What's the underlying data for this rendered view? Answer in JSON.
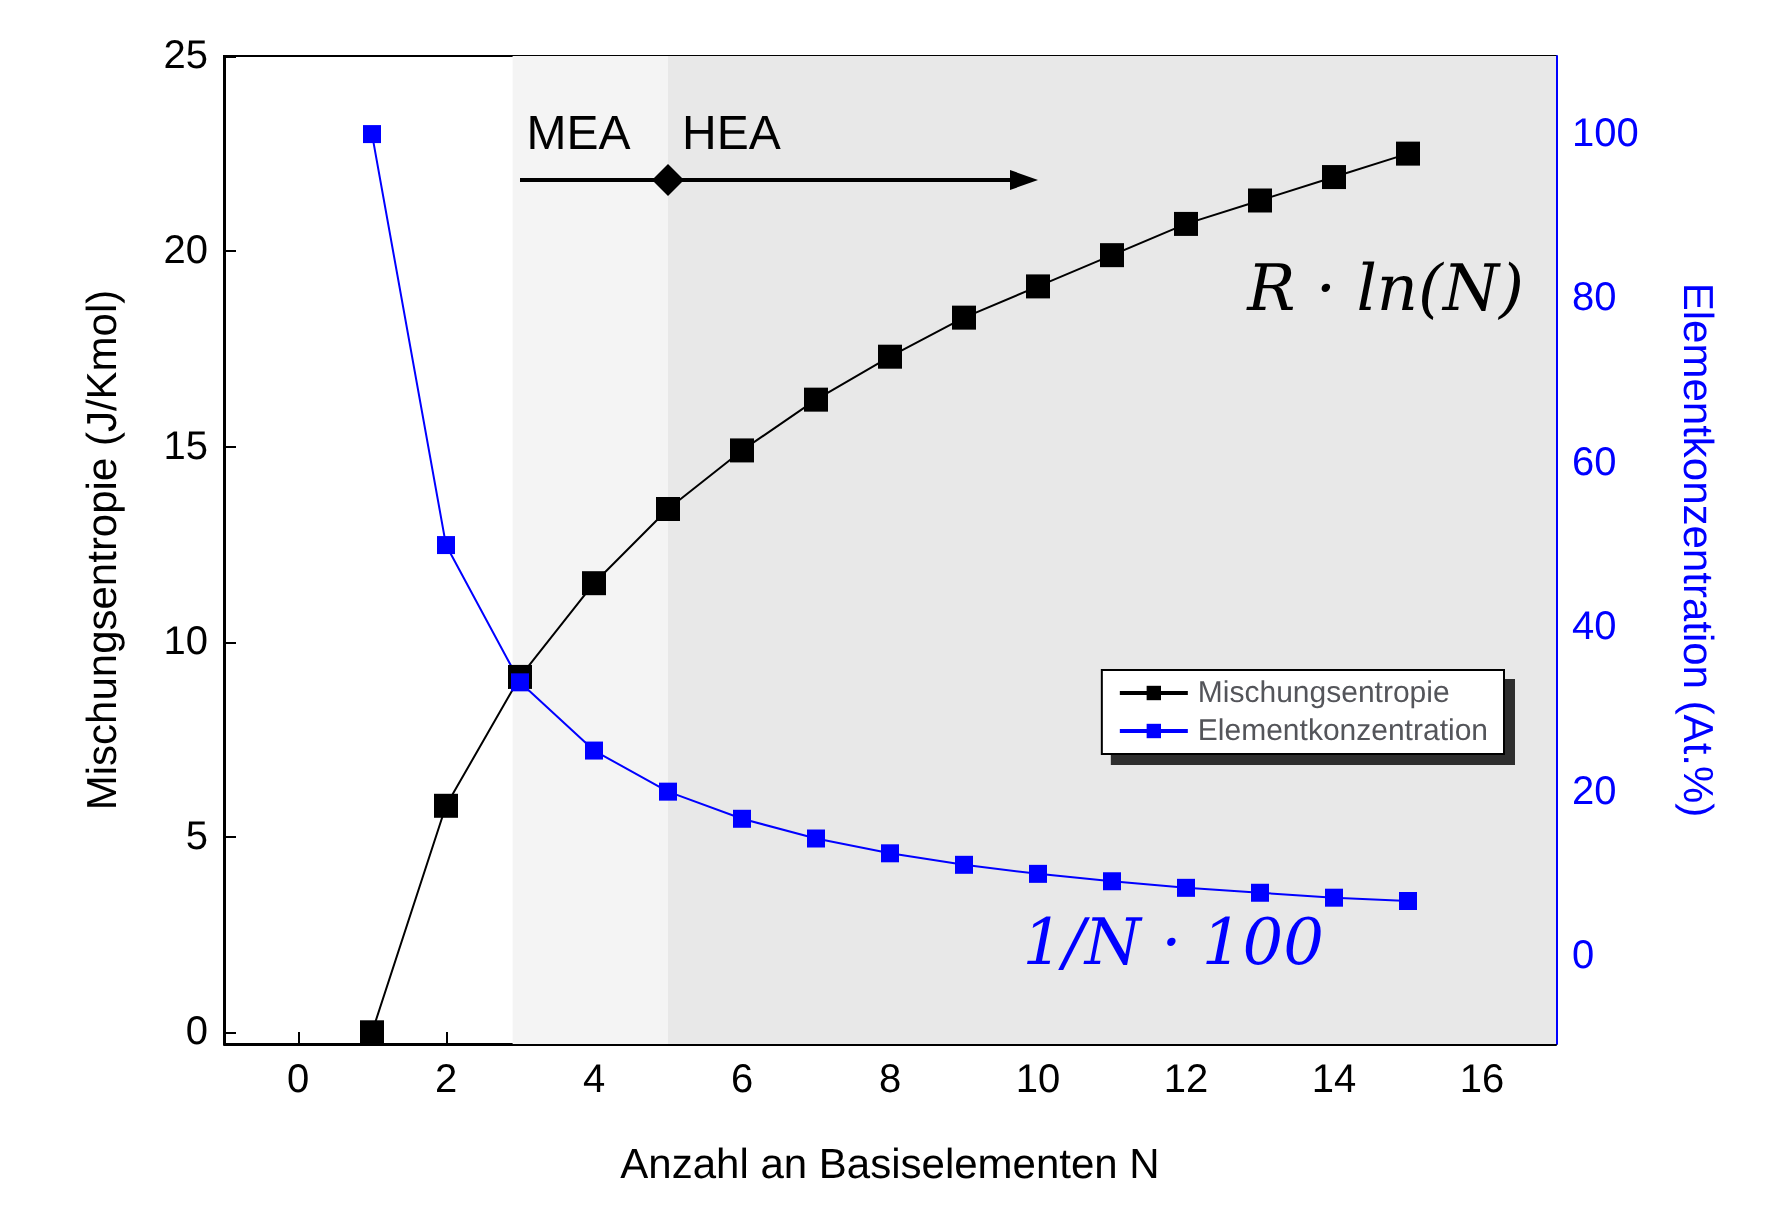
{
  "chart_data": {
    "type": "line",
    "xlabel": "Anzahl an Basiselementen N",
    "ylabel": "Mischungsentropie (J/Kmol)",
    "y2label": "Elementkonzentration (At.%)",
    "x": [
      1,
      2,
      3,
      4,
      5,
      6,
      7,
      8,
      9,
      10,
      11,
      12,
      13,
      14,
      15
    ],
    "series": [
      {
        "name": "Mischungsentropie",
        "color": "#000000",
        "values": [
          0,
          5.8,
          9.1,
          11.5,
          13.4,
          14.9,
          16.2,
          17.3,
          18.3,
          19.1,
          19.9,
          20.7,
          21.3,
          21.9,
          22.5
        ]
      },
      {
        "name": "Elementkonzentration",
        "color": "#0000ff",
        "axis": "y2",
        "values": [
          100,
          50,
          33.3,
          25,
          20,
          16.7,
          14.3,
          12.5,
          11.1,
          10,
          9.1,
          8.3,
          7.7,
          7.1,
          6.7
        ]
      }
    ],
    "xlim": [
      -1,
      17
    ],
    "xticks": [
      0,
      2,
      4,
      6,
      8,
      10,
      12,
      14,
      16
    ],
    "ylim": [
      -0.3,
      25
    ],
    "yticks": [
      0,
      5,
      10,
      15,
      20,
      25
    ],
    "y2lim": [
      -10.7,
      109.5
    ],
    "y2ticks": [
      0,
      20,
      40,
      60,
      80,
      100
    ],
    "bands": [
      {
        "axis": "x",
        "from": 2.9,
        "to": 5,
        "label": "MEA",
        "color": "#f4f4f4"
      },
      {
        "axis": "x",
        "from": 5,
        "to": 17,
        "label": "HEA",
        "color": "#e8e8e8"
      }
    ],
    "annotations": [
      "R · ln(N)",
      "1/N · 100"
    ],
    "legend": "right",
    "marker": "square",
    "line_style": "solid",
    "grid": false
  }
}
